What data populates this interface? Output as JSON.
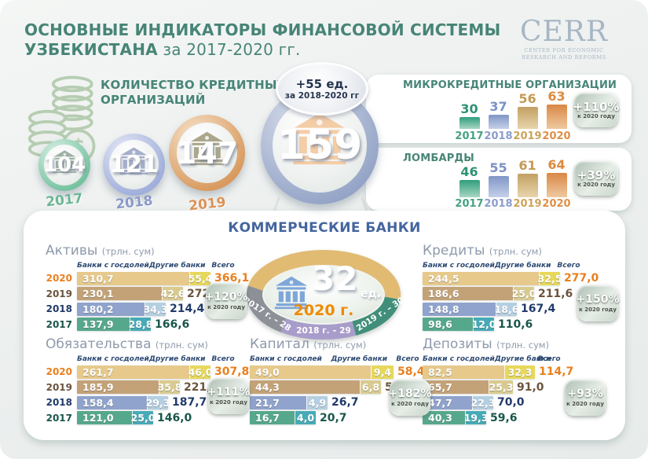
{
  "header": {
    "title_line1": "ОСНОВНЫЕ ИНДИКАТОРЫ ФИНАНСОВОЙ СИСТЕМЫ",
    "title_line2_bold": "УЗБЕКИСТАНА",
    "title_line2_rest": " за 2017-2020 гг.",
    "logo": {
      "text": "CERR",
      "sub1": "CENTER FOR ECONOMIC",
      "sub2": "RESEARCH AND REFORMS"
    },
    "title_color": "#478576"
  },
  "credit_orgs": {
    "title_line1": "КОЛИЧЕСТВО КРЕДИТНЫХ",
    "title_line2": "ОРГАНИЗАЦИЙ",
    "items": [
      {
        "year": "2017",
        "value": "104",
        "ring": "#74c2a0",
        "ring_light": "#d9f0e5",
        "icon": "#9fb1a4",
        "year_color": "#6db695"
      },
      {
        "year": "2018",
        "value": "121",
        "ring": "#a0aeda",
        "ring_light": "#e4e8f6",
        "icon": "#a5aecb",
        "year_color": "#8a99c8"
      },
      {
        "year": "2019",
        "value": "147",
        "ring": "#d89a5e",
        "ring_light": "#f6e3cd",
        "icon": "#aba78c",
        "year_color": "#dd9257"
      }
    ],
    "big": {
      "value": "159",
      "ring": "#93a3c6",
      "ring_light": "#d8deeb",
      "icon": "#f4cda6",
      "badge_line1": "+55 ед.",
      "badge_line2": "за 2018-2020 гг"
    }
  },
  "micro_orgs": {
    "title": "МИКРОКРЕДИТНЫЕ ОРГАНИЗАЦИИ",
    "badge_percent": "+110%",
    "badge_note": "к 2020 году",
    "bars": [
      {
        "year": "2017",
        "value": 30
      },
      {
        "year": "2018",
        "value": 37
      },
      {
        "year": "2019",
        "value": 56
      },
      {
        "year": "2020",
        "value": 63
      }
    ]
  },
  "lombards": {
    "title": "ЛОМБАРДЫ",
    "badge_percent": "+39%",
    "badge_note": "к 2020 году",
    "bars": [
      {
        "year": "2017",
        "value": 46
      },
      {
        "year": "2018",
        "value": 55
      },
      {
        "year": "2019",
        "value": 61
      },
      {
        "year": "2020",
        "value": 64
      }
    ]
  },
  "mini_styles": {
    "2017": {
      "num": "#2f9273",
      "bar_top": "#2f9e7c",
      "bar_bottom": "#a8d6c3",
      "year": "#46a181"
    },
    "2018": {
      "num": "#7b92c4",
      "bar_top": "#8096c7",
      "bar_bottom": "#c6d0e8",
      "year": "#8b9cce"
    },
    "2019": {
      "num": "#c49a55",
      "bar_top": "#c2a063",
      "bar_bottom": "#e8d5ac",
      "year": "#cda257"
    },
    "2020": {
      "num": "#dd8a3f",
      "bar_top": "#d98845",
      "bar_bottom": "#efc9a0",
      "year": "#df8f47"
    }
  },
  "banks": {
    "title": "КОММЕРЧЕСКИЕ БАНКИ",
    "oval": {
      "count": "32",
      "unit": "ед.",
      "year": "2020 г.",
      "seg2017": "2017 г. – 28",
      "seg2018": "2018 г. – 29",
      "seg2019": "2019 г. – 30",
      "colors": {
        "top": "#e2bb73",
        "seg2017": "#8d9097",
        "seg2018": "#a89dca",
        "seg2019": "#418f7a"
      }
    },
    "columns": {
      "state": "Банки с госдолей",
      "other": "Другие банки",
      "total": "Всего"
    },
    "unit": "(трлн. сум)",
    "tables": [
      {
        "id": "assets",
        "title": "Активы",
        "show_years": true,
        "badge_percent": "+120%",
        "badge_note": "к 2020 году",
        "rows": [
          {
            "year": "2020",
            "state": "310,7",
            "other": "55,4",
            "total": "366,1"
          },
          {
            "year": "2019",
            "state": "230,1",
            "other": "42,6",
            "total": "272,7"
          },
          {
            "year": "2018",
            "state": "180,2",
            "other": "34,3",
            "total": "214,4"
          },
          {
            "year": "2017",
            "state": "137,9",
            "other": "28,8",
            "total": "166,6"
          }
        ]
      },
      {
        "id": "loans",
        "title": "Кредиты",
        "show_years": false,
        "badge_percent": "+150%",
        "badge_note": "к 2020 году",
        "rows": [
          {
            "year": "2020",
            "state": "244,5",
            "other": "32,5",
            "total": "277,0"
          },
          {
            "year": "2019",
            "state": "186,6",
            "other": "25,0",
            "total": "211,6"
          },
          {
            "year": "2018",
            "state": "148,8",
            "other": "18,6",
            "total": "167,4"
          },
          {
            "year": "2017",
            "state": "98,6",
            "other": "12,0",
            "total": "110,6"
          }
        ]
      },
      {
        "id": "liabilities",
        "title": "Обязательства",
        "show_years": true,
        "badge_percent": "+111%",
        "badge_note": "к 2020 году",
        "rows": [
          {
            "year": "2020",
            "state": "261,7",
            "other": "46,0",
            "total": "307,8"
          },
          {
            "year": "2019",
            "state": "185,9",
            "other": "35,8",
            "total": "221,7"
          },
          {
            "year": "2018",
            "state": "158,4",
            "other": "29,3",
            "total": "187,7"
          },
          {
            "year": "2017",
            "state": "121,0",
            "other": "25,0",
            "total": "146,0"
          }
        ]
      },
      {
        "id": "capital",
        "title": "Капитал",
        "show_years": false,
        "badge_percent": "+182%",
        "badge_note": "к 2020 году",
        "rows": [
          {
            "year": "2020",
            "state": "49,0",
            "other": "9,4",
            "total": "58,4"
          },
          {
            "year": "2019",
            "state": "44,3",
            "other": "6,8",
            "total": "51,0"
          },
          {
            "year": "2018",
            "state": "21,7",
            "other": "4,9",
            "total": "26,7"
          },
          {
            "year": "2017",
            "state": "16,7",
            "other": "4,0",
            "total": "20,7"
          }
        ]
      },
      {
        "id": "deposits",
        "title": "Депозиты",
        "show_years": false,
        "badge_percent": "+93%",
        "badge_note": "к 2020 году",
        "rows": [
          {
            "year": "2020",
            "state": "82,5",
            "other": "32,3",
            "total": "114,7"
          },
          {
            "year": "2019",
            "state": "65,7",
            "other": "25,3",
            "total": "91,0"
          },
          {
            "year": "2018",
            "state": "47,7",
            "other": "22,3",
            "total": "70,0"
          },
          {
            "year": "2017",
            "state": "40,3",
            "other": "19,3",
            "total": "59,6"
          }
        ]
      }
    ]
  },
  "year_styles": {
    "2020": {
      "bar": "#e6c98b",
      "seg": "#e7d85c",
      "text": "#ea7f1d"
    },
    "2019": {
      "bar": "#c3a277",
      "seg": "#d9cb90",
      "text": "#6b543d"
    },
    "2018": {
      "bar": "#8fa3cc",
      "seg": "#b5cfe2",
      "text": "#223a6a"
    },
    "2017": {
      "bar": "#56a88d",
      "seg": "#46abb7",
      "text": "#19564a"
    }
  },
  "chart_data": [
    {
      "type": "bar",
      "title": "Количество кредитных организаций",
      "categories": [
        "2017",
        "2018",
        "2019",
        "2020"
      ],
      "values": [
        104,
        121,
        147,
        159
      ],
      "annotations": [
        "+55 ед. за 2018-2020 гг"
      ]
    },
    {
      "type": "bar",
      "title": "Микрокредитные организации",
      "categories": [
        "2017",
        "2018",
        "2019",
        "2020"
      ],
      "values": [
        30,
        37,
        56,
        63
      ],
      "annotations": [
        "+110% к 2020 году"
      ]
    },
    {
      "type": "bar",
      "title": "Ломбарды",
      "categories": [
        "2017",
        "2018",
        "2019",
        "2020"
      ],
      "values": [
        46,
        55,
        61,
        64
      ],
      "annotations": [
        "+39% к 2020 году"
      ]
    },
    {
      "type": "bar",
      "title": "Коммерческие банки (ед.)",
      "categories": [
        "2017",
        "2018",
        "2019",
        "2020"
      ],
      "values": [
        28,
        29,
        30,
        32
      ]
    },
    {
      "type": "table",
      "title": "Активы (трлн. сум)",
      "categories": [
        "2020",
        "2019",
        "2018",
        "2017"
      ],
      "series": [
        {
          "name": "Банки с госдолей",
          "values": [
            310.7,
            230.1,
            180.2,
            137.9
          ]
        },
        {
          "name": "Другие банки",
          "values": [
            55.4,
            42.6,
            34.3,
            28.8
          ]
        },
        {
          "name": "Всего",
          "values": [
            366.1,
            272.7,
            214.4,
            166.6
          ]
        }
      ],
      "annotations": [
        "+120% к 2020 году"
      ]
    },
    {
      "type": "table",
      "title": "Кредиты (трлн. сум)",
      "categories": [
        "2020",
        "2019",
        "2018",
        "2017"
      ],
      "series": [
        {
          "name": "Банки с госдолей",
          "values": [
            244.5,
            186.6,
            148.8,
            98.6
          ]
        },
        {
          "name": "Другие банки",
          "values": [
            32.5,
            25.0,
            18.6,
            12.0
          ]
        },
        {
          "name": "Всего",
          "values": [
            277.0,
            211.6,
            167.4,
            110.6
          ]
        }
      ],
      "annotations": [
        "+150% к 2020 году"
      ]
    },
    {
      "type": "table",
      "title": "Обязательства (трлн. сум)",
      "categories": [
        "2020",
        "2019",
        "2018",
        "2017"
      ],
      "series": [
        {
          "name": "Банки с госдолей",
          "values": [
            261.7,
            185.9,
            158.4,
            121.0
          ]
        },
        {
          "name": "Другие банки",
          "values": [
            46.0,
            35.8,
            29.3,
            25.0
          ]
        },
        {
          "name": "Всего",
          "values": [
            307.8,
            221.7,
            187.7,
            146.0
          ]
        }
      ],
      "annotations": [
        "+111% к 2020 году"
      ]
    },
    {
      "type": "table",
      "title": "Капитал (трлн. сум)",
      "categories": [
        "2020",
        "2019",
        "2018",
        "2017"
      ],
      "series": [
        {
          "name": "Банки с госдолей",
          "values": [
            49.0,
            44.3,
            21.7,
            16.7
          ]
        },
        {
          "name": "Другие банки",
          "values": [
            9.4,
            6.8,
            4.9,
            4.0
          ]
        },
        {
          "name": "Всего",
          "values": [
            58.4,
            51.0,
            26.7,
            20.7
          ]
        }
      ],
      "annotations": [
        "+182% к 2020 году"
      ]
    },
    {
      "type": "table",
      "title": "Депозиты (трлн. сум)",
      "categories": [
        "2020",
        "2019",
        "2018",
        "2017"
      ],
      "series": [
        {
          "name": "Банки с госдолей",
          "values": [
            82.5,
            65.7,
            47.7,
            40.3
          ]
        },
        {
          "name": "Другие банки",
          "values": [
            32.3,
            25.3,
            22.3,
            19.3
          ]
        },
        {
          "name": "Всего",
          "values": [
            114.7,
            91.0,
            70.0,
            59.6
          ]
        }
      ],
      "annotations": [
        "+93% к 2020 году"
      ]
    }
  ]
}
